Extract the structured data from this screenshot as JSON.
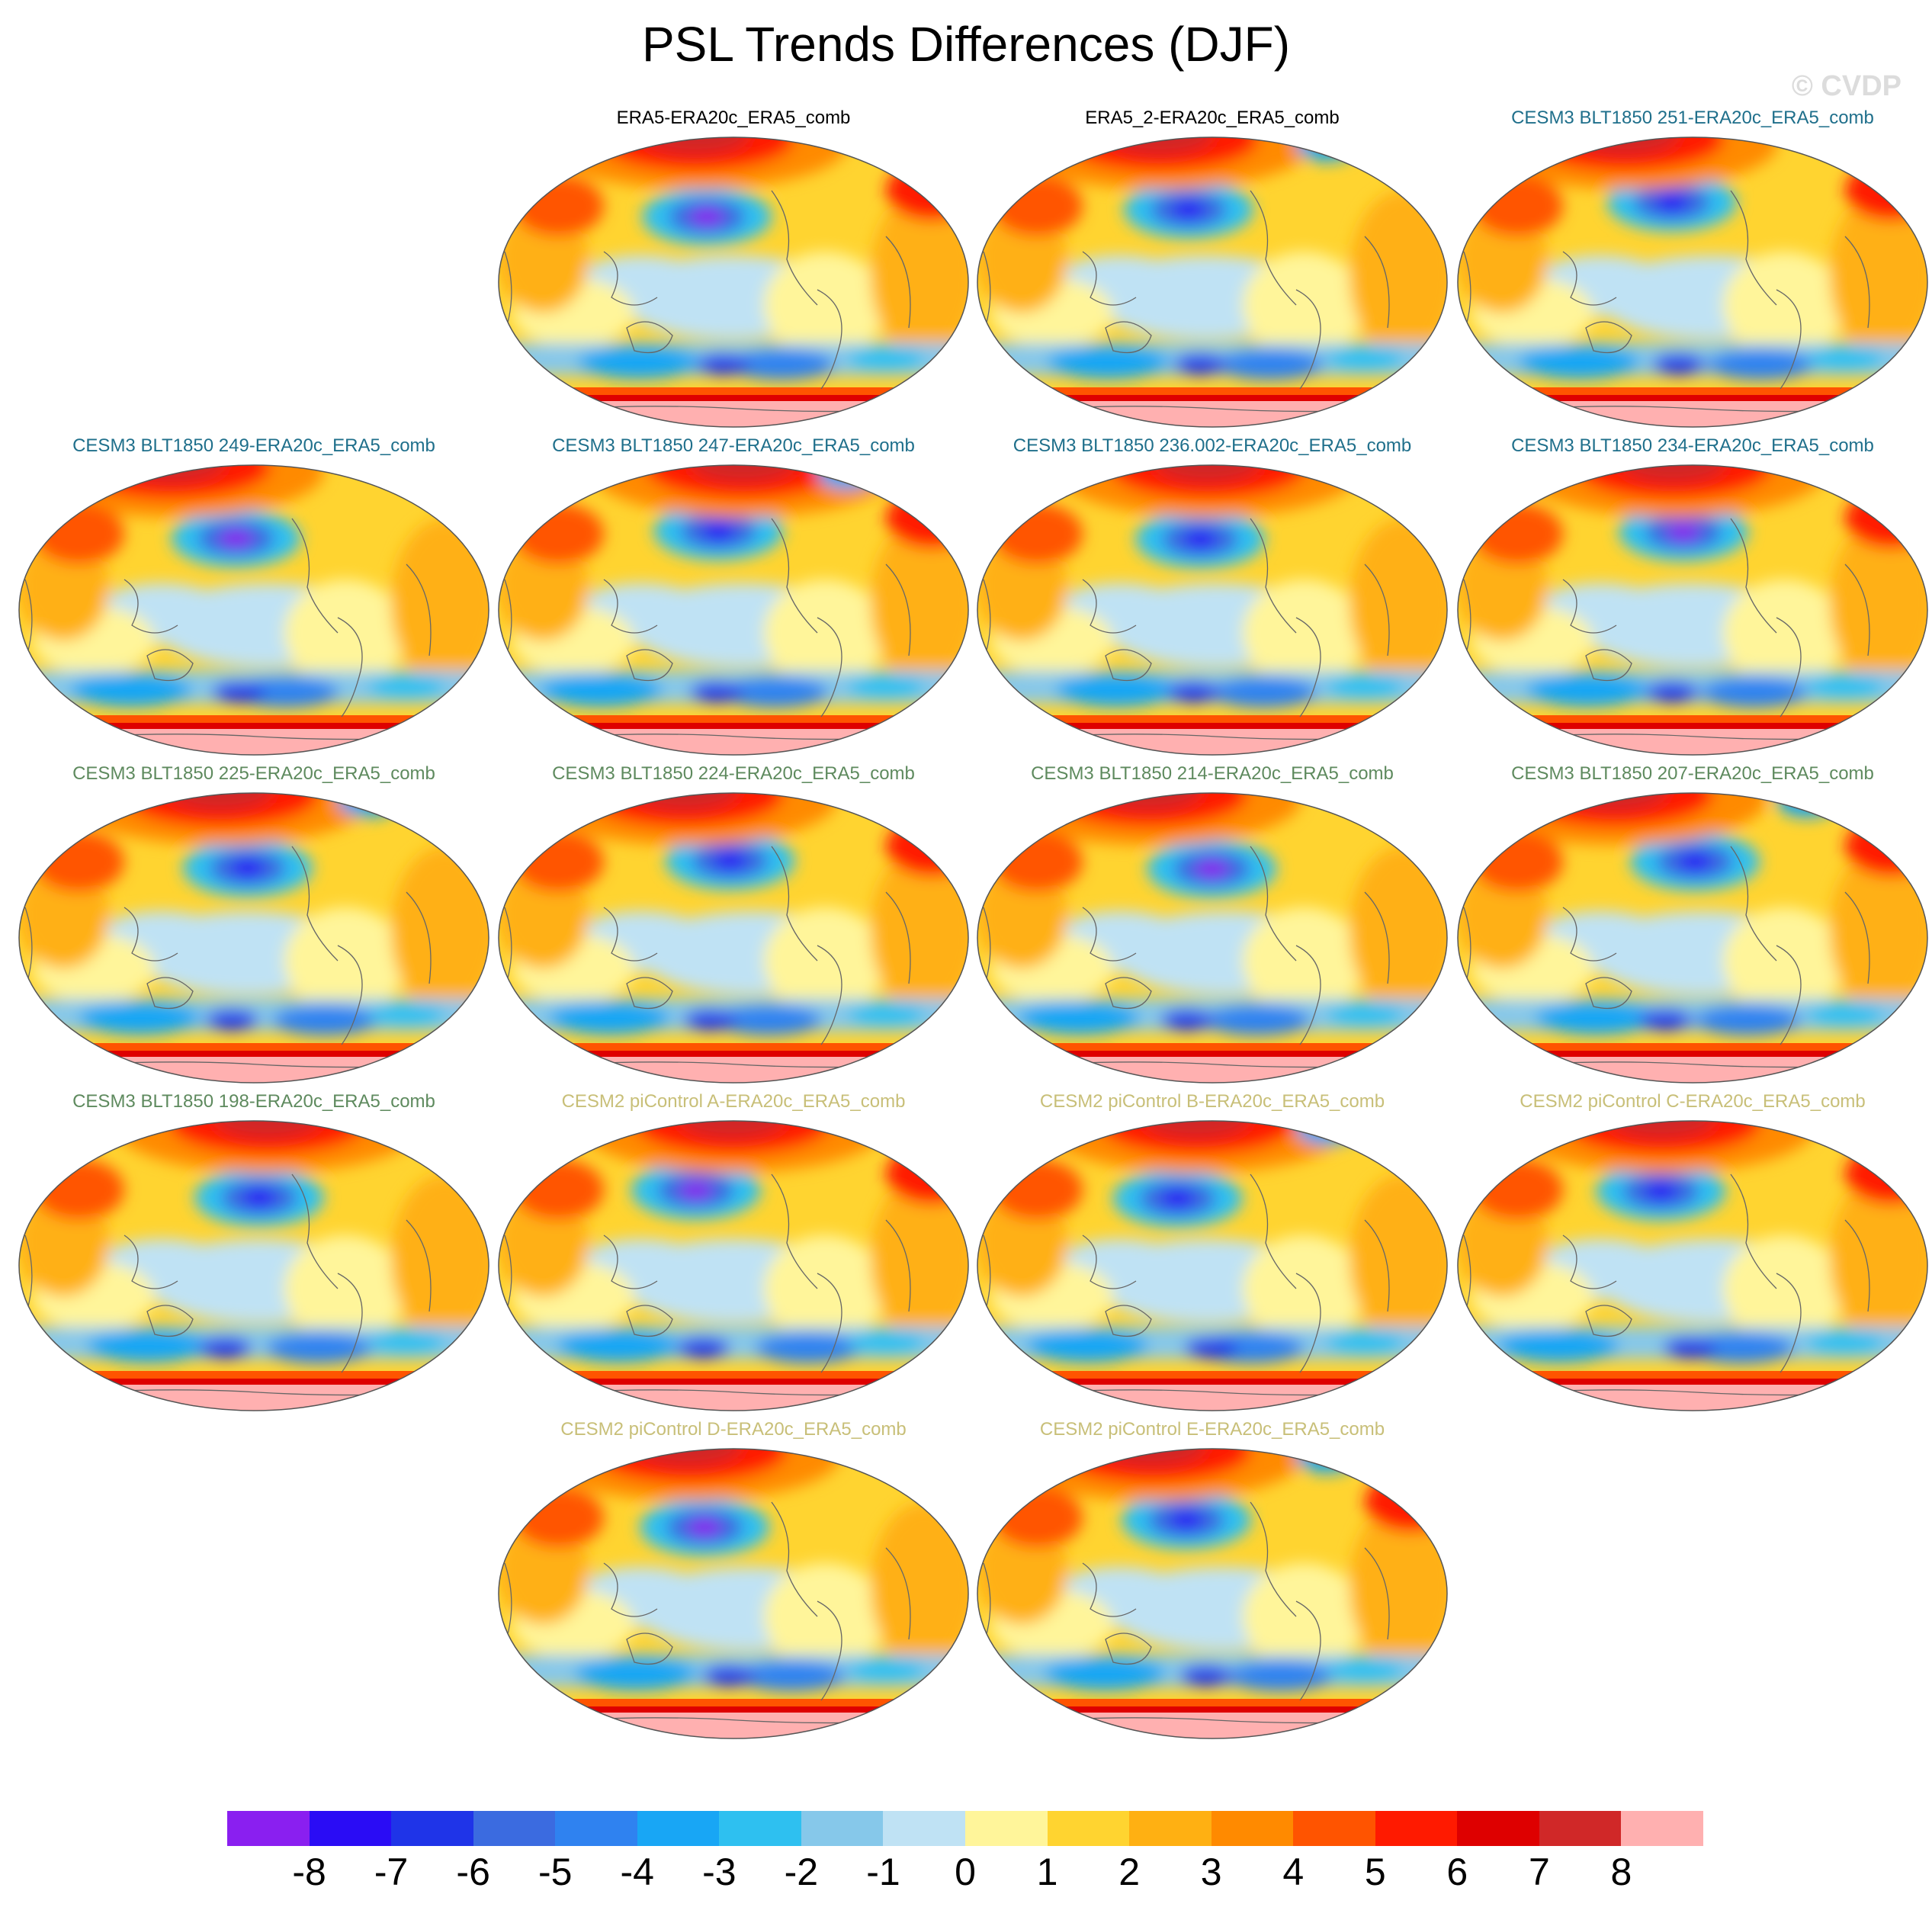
{
  "title": "PSL Trends Differences (DJF)",
  "credit": "© CVDP",
  "panels": [
    {
      "title": "ERA5-ERA20c_ERA5_comb",
      "title_color": "#000000",
      "variant": 0
    },
    {
      "title": "ERA5_2-ERA20c_ERA5_comb",
      "title_color": "#000000",
      "variant": 1
    },
    {
      "title": "CESM3 BLT1850 251-ERA20c_ERA5_comb",
      "title_color": "#1f6f8b",
      "variant": 2
    },
    {
      "title": "CESM3 BLT1850 249-ERA20c_ERA5_comb",
      "title_color": "#1f6f8b",
      "variant": 3
    },
    {
      "title": "CESM3 BLT1850 247-ERA20c_ERA5_comb",
      "title_color": "#1f6f8b",
      "variant": 4
    },
    {
      "title": "CESM3 BLT1850 236.002-ERA20c_ERA5_comb",
      "title_color": "#1f6f8b",
      "variant": 5
    },
    {
      "title": "CESM3 BLT1850 234-ERA20c_ERA5_comb",
      "title_color": "#1f6f8b",
      "variant": 6
    },
    {
      "title": "CESM3 BLT1850 225-ERA20c_ERA5_comb",
      "title_color": "#5e8a5e",
      "variant": 7
    },
    {
      "title": "CESM3 BLT1850 224-ERA20c_ERA5_comb",
      "title_color": "#5e8a5e",
      "variant": 8
    },
    {
      "title": "CESM3 BLT1850 214-ERA20c_ERA5_comb",
      "title_color": "#5e8a5e",
      "variant": 9
    },
    {
      "title": "CESM3 BLT1850 207-ERA20c_ERA5_comb",
      "title_color": "#5e8a5e",
      "variant": 10
    },
    {
      "title": "CESM3 BLT1850 198-ERA20c_ERA5_comb",
      "title_color": "#5e8a5e",
      "variant": 11
    },
    {
      "title": "CESM2 piControl A-ERA20c_ERA5_comb",
      "title_color": "#c8bf78",
      "variant": 12
    },
    {
      "title": "CESM2 piControl B-ERA20c_ERA5_comb",
      "title_color": "#c8bf78",
      "variant": 13
    },
    {
      "title": "CESM2 piControl C-ERA20c_ERA5_comb",
      "title_color": "#c8bf78",
      "variant": 14
    },
    {
      "title": "CESM2 piControl D-ERA20c_ERA5_comb",
      "title_color": "#c8bf78",
      "variant": 15
    },
    {
      "title": "CESM2 piControl E-ERA20c_ERA5_comb",
      "title_color": "#c8bf78",
      "variant": 16
    }
  ],
  "colorbar": {
    "colors": [
      "#8a1ff0",
      "#2a0cf5",
      "#1f34e8",
      "#3b6be0",
      "#2f82f0",
      "#18a6f5",
      "#2ec0f0",
      "#86c8ea",
      "#bfe2f4",
      "#fff59a",
      "#ffd430",
      "#ffb012",
      "#ff8a00",
      "#ff5400",
      "#ff1a00",
      "#de0000",
      "#d02828",
      "#ffb0b0"
    ],
    "labels": [
      "-8",
      "-7",
      "-6",
      "-5",
      "-4",
      "-3",
      "-2",
      "-1",
      "0",
      "1",
      "2",
      "3",
      "4",
      "5",
      "6",
      "7",
      "8"
    ]
  }
}
